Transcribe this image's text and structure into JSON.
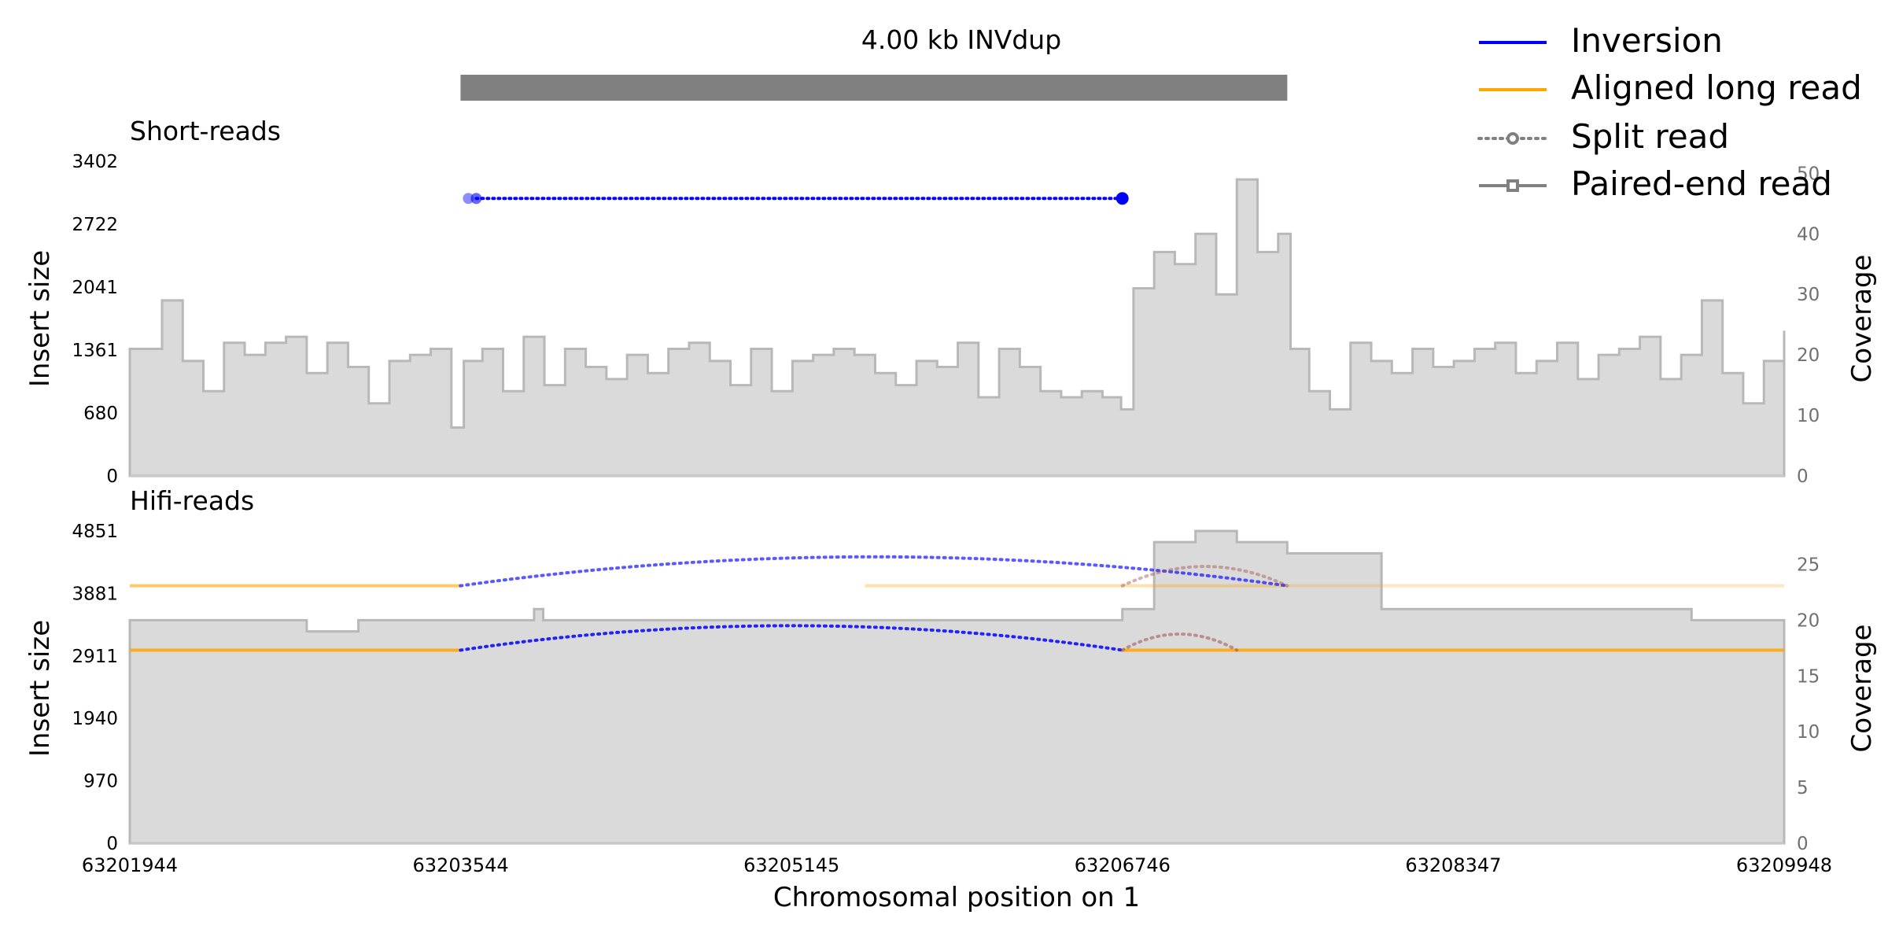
{
  "chart_data": {
    "type": "area",
    "sv_label": "4.00 kb INVdup",
    "sv_region": [
      63203544,
      63207544
    ],
    "xlabel": "Chromosomal position on 1",
    "xlim": [
      63201944,
      63209948
    ],
    "xticks": [
      "63201944",
      "63203544",
      "63205145",
      "63206746",
      "63208347",
      "63209948"
    ],
    "legend": {
      "placement": "top-right",
      "entries": [
        {
          "label": "Inversion",
          "color": "#0000ff",
          "style": "solid"
        },
        {
          "label": "Aligned long read",
          "color": "#ffa500",
          "style": "solid"
        },
        {
          "label": "Split read",
          "color": "#808080",
          "style": "dotted-circle"
        },
        {
          "label": "Paired-end read",
          "color": "#808080",
          "style": "solid-square"
        }
      ]
    },
    "panels": [
      {
        "title": "Short-reads",
        "ylabel": "Insert size",
        "yticks": [
          "3402",
          "2722",
          "2041",
          "1361",
          "680",
          "0"
        ],
        "ylim": [
          0,
          3402
        ],
        "y2label": "Coverage",
        "y2ticks": [
          "50",
          "40",
          "30",
          "20",
          "10",
          "0"
        ],
        "y2lim": [
          0,
          52
        ],
        "coverage": {
          "x": [
            63201944,
            63202100,
            63202200,
            63202300,
            63202400,
            63202500,
            63202600,
            63202700,
            63202800,
            63202900,
            63203000,
            63203100,
            63203200,
            63203300,
            63203400,
            63203500,
            63203560,
            63203650,
            63203750,
            63203850,
            63203950,
            63204050,
            63204150,
            63204250,
            63204350,
            63204450,
            63204550,
            63204650,
            63204750,
            63204850,
            63204950,
            63205050,
            63205150,
            63205250,
            63205350,
            63205450,
            63205550,
            63205650,
            63205750,
            63205850,
            63205950,
            63206050,
            63206150,
            63206250,
            63206350,
            63206450,
            63206550,
            63206650,
            63206740,
            63206800,
            63206900,
            63207000,
            63207100,
            63207200,
            63207300,
            63207400,
            63207500,
            63207560,
            63207650,
            63207750,
            63207850,
            63207950,
            63208050,
            63208150,
            63208250,
            63208350,
            63208450,
            63208550,
            63208650,
            63208750,
            63208850,
            63208950,
            63209050,
            63209150,
            63209250,
            63209350,
            63209450,
            63209550,
            63209650,
            63209750,
            63209850,
            63209948
          ],
          "values": [
            21,
            29,
            19,
            14,
            22,
            20,
            22,
            23,
            17,
            22,
            18,
            12,
            19,
            20,
            21,
            8,
            19,
            21,
            14,
            23,
            15,
            21,
            18,
            16,
            20,
            17,
            21,
            22,
            19,
            15,
            21,
            14,
            19,
            20,
            21,
            20,
            17,
            15,
            19,
            18,
            22,
            13,
            21,
            18,
            14,
            13,
            14,
            13,
            11,
            31,
            37,
            35,
            40,
            30,
            49,
            37,
            40,
            21,
            14,
            11,
            22,
            19,
            17,
            21,
            18,
            19,
            21,
            22,
            17,
            19,
            22,
            16,
            20,
            21,
            23,
            16,
            20,
            29,
            17,
            12,
            19,
            24
          ]
        },
        "reads": [
          {
            "type": "inversion",
            "x1": 63203620,
            "x2": 63206746,
            "y": 3000
          }
        ]
      },
      {
        "title": "Hifi-reads",
        "ylabel": "Insert size",
        "yticks": [
          "4851",
          "3881",
          "2911",
          "1940",
          "970",
          "0"
        ],
        "ylim": [
          0,
          4851
        ],
        "y2label": "Coverage",
        "y2ticks": [
          "25",
          "20",
          "15",
          "10",
          "5",
          "0"
        ],
        "y2lim": [
          0,
          28
        ],
        "coverage": {
          "x": [
            63201944,
            63202800,
            63203050,
            63203900,
            63203944,
            63204650,
            63205600,
            63206746,
            63206900,
            63207100,
            63207300,
            63207544,
            63208000,
            63209500,
            63209948
          ],
          "values": [
            20,
            19,
            20,
            21,
            20,
            20,
            20,
            21,
            27,
            28,
            27,
            26,
            21,
            20,
            19
          ],
          "step": true
        },
        "aligned_long_reads": [
          {
            "x1": 63201944,
            "x2": 63203544,
            "y": 4000,
            "alpha": 0.6
          },
          {
            "x1": 63205500,
            "x2": 63207544,
            "y": 4000,
            "alpha": 0.35
          },
          {
            "x1": 63207544,
            "x2": 63209948,
            "y": 4000,
            "alpha": 0.25
          },
          {
            "x1": 63201944,
            "x2": 63203544,
            "y": 3000,
            "alpha": 0.85
          },
          {
            "x1": 63206746,
            "x2": 63209948,
            "y": 3000,
            "alpha": 0.85
          }
        ],
        "split_reads": [
          {
            "type": "inversion",
            "x1": 63203544,
            "x2": 63207544,
            "y": 4000,
            "peak": 4450,
            "alpha": 0.65
          },
          {
            "type": "inversion",
            "x1": 63203544,
            "x2": 63206746,
            "y": 3000,
            "peak": 3380,
            "alpha": 0.85
          },
          {
            "type": "other",
            "x1": 63206746,
            "x2": 63207544,
            "y": 4000,
            "peak": 4300,
            "alpha": 0.45
          },
          {
            "type": "other",
            "x1": 63206746,
            "x2": 63207300,
            "y": 3000,
            "peak": 3250,
            "alpha": 0.55
          }
        ]
      }
    ]
  },
  "colors": {
    "coverage_fill": "#dadada",
    "coverage_line": "#b8b8b8",
    "sv_bar": "#808080",
    "inversion": "#0000ff",
    "aligned": "#ffa500",
    "split_other": "#a05050",
    "text": "#000000",
    "right_tick_text": "#707070"
  }
}
